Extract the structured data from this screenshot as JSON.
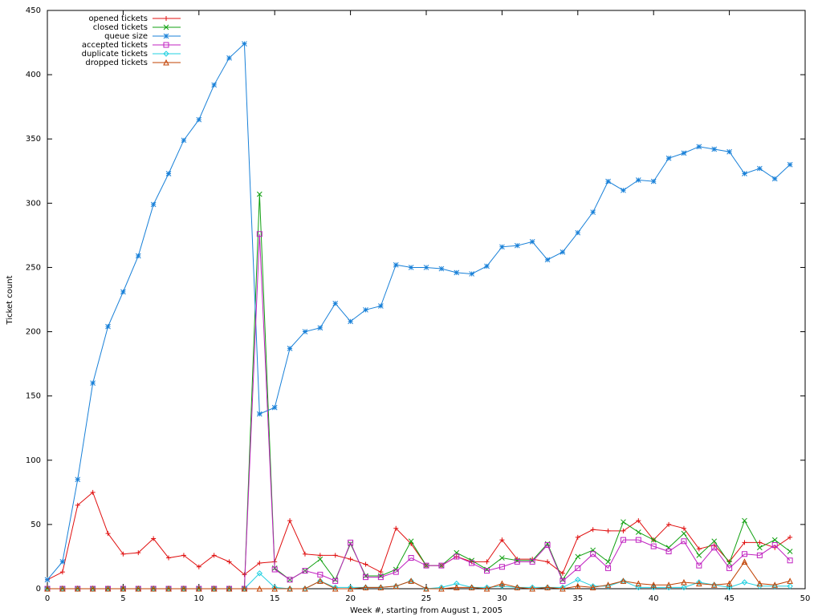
{
  "chart_data": {
    "type": "line",
    "xlabel": "Week #, starting from August 1, 2005",
    "ylabel": "Ticket count",
    "x": [
      0,
      1,
      2,
      3,
      4,
      5,
      6,
      7,
      8,
      9,
      10,
      11,
      12,
      13,
      14,
      15,
      16,
      17,
      18,
      19,
      20,
      21,
      22,
      23,
      24,
      25,
      26,
      27,
      28,
      29,
      30,
      31,
      32,
      33,
      34,
      35,
      36,
      37,
      38,
      39,
      40,
      41,
      42,
      43,
      44,
      45,
      46,
      47,
      48,
      49
    ],
    "xlim": [
      0,
      50
    ],
    "xticks": [
      0,
      5,
      10,
      15,
      20,
      25,
      30,
      35,
      40,
      45,
      50
    ],
    "ylim": [
      0,
      450
    ],
    "yticks": [
      0,
      50,
      100,
      150,
      200,
      250,
      300,
      350,
      400,
      450
    ],
    "legend": "top-left",
    "series": [
      {
        "name": "opened tickets",
        "color": "#e01010",
        "marker": "plus",
        "values": [
          7,
          13,
          65,
          75,
          43,
          27,
          28,
          39,
          24,
          26,
          17,
          26,
          21,
          11,
          20,
          21,
          53,
          27,
          26,
          26,
          23,
          19,
          13,
          47,
          35,
          18,
          18,
          25,
          21,
          21,
          38,
          23,
          23,
          21,
          12,
          40,
          46,
          45,
          45,
          53,
          38,
          50,
          47,
          31,
          34,
          21,
          36,
          36,
          32,
          40
        ]
      },
      {
        "name": "closed tickets",
        "color": "#10a010",
        "marker": "cross",
        "values": [
          0,
          0,
          0,
          0,
          0,
          0,
          0,
          0,
          0,
          0,
          0,
          0,
          0,
          0,
          307,
          16,
          7,
          14,
          23,
          7,
          35,
          10,
          10,
          15,
          37,
          18,
          18,
          28,
          22,
          15,
          24,
          22,
          22,
          35,
          7,
          25,
          30,
          21,
          52,
          44,
          38,
          32,
          43,
          26,
          37,
          20,
          53,
          32,
          38,
          29
        ]
      },
      {
        "name": "queue size",
        "color": "#1880d8",
        "marker": "star",
        "values": [
          7,
          21,
          85,
          160,
          204,
          231,
          259,
          299,
          323,
          349,
          365,
          392,
          413,
          424,
          136,
          141,
          187,
          200,
          203,
          222,
          208,
          217,
          220,
          252,
          250,
          250,
          249,
          246,
          245,
          251,
          266,
          267,
          270,
          256,
          262,
          277,
          293,
          317,
          310,
          318,
          317,
          335,
          339,
          344,
          342,
          340,
          323,
          327,
          319,
          330
        ]
      },
      {
        "name": "accepted tickets",
        "color": "#c020c0",
        "marker": "square",
        "values": [
          0,
          0,
          0,
          0,
          0,
          0,
          0,
          0,
          0,
          0,
          0,
          0,
          0,
          0,
          276,
          15,
          7,
          14,
          11,
          6,
          36,
          9,
          9,
          13,
          24,
          18,
          18,
          25,
          20,
          14,
          17,
          21,
          21,
          34,
          6,
          16,
          27,
          16,
          38,
          38,
          33,
          29,
          37,
          18,
          32,
          16,
          27,
          26,
          34,
          22
        ]
      },
      {
        "name": "duplicate tickets",
        "color": "#20d0e0",
        "marker": "diamond",
        "values": [
          0,
          0,
          0,
          0,
          0,
          0,
          0,
          0,
          0,
          0,
          0,
          0,
          0,
          0,
          12,
          1,
          0,
          0,
          6,
          1,
          1,
          1,
          1,
          2,
          6,
          0,
          1,
          4,
          1,
          1,
          2,
          1,
          1,
          1,
          1,
          7,
          2,
          2,
          6,
          1,
          1,
          1,
          1,
          5,
          3,
          1,
          5,
          2,
          2,
          2
        ]
      },
      {
        "name": "dropped tickets",
        "color": "#c04000",
        "marker": "triangle",
        "values": [
          0,
          0,
          0,
          0,
          0,
          0,
          0,
          0,
          0,
          0,
          0,
          0,
          0,
          0,
          0,
          0,
          0,
          0,
          6,
          0,
          0,
          1,
          1,
          2,
          6,
          0,
          0,
          1,
          1,
          0,
          4,
          1,
          0,
          1,
          0,
          2,
          1,
          3,
          6,
          4,
          3,
          3,
          5,
          4,
          3,
          4,
          21,
          4,
          3,
          6
        ]
      }
    ]
  }
}
